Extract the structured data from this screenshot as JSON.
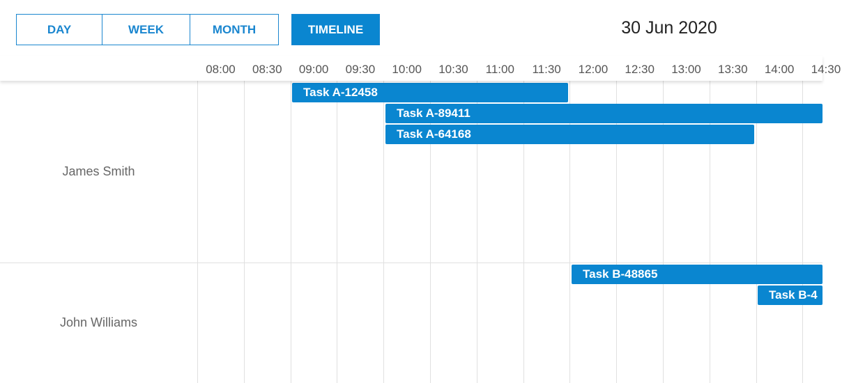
{
  "toolbar": {
    "views": [
      "DAY",
      "WEEK",
      "MONTH",
      "TIMELINE"
    ],
    "active_view": "TIMELINE",
    "date": "30 Jun 2020"
  },
  "timeline": {
    "times": [
      "08:00",
      "08:30",
      "09:00",
      "09:30",
      "10:00",
      "10:30",
      "11:00",
      "11:30",
      "12:00",
      "12:30",
      "13:00",
      "13:30",
      "14:00",
      "14:30"
    ],
    "resources": [
      {
        "name": "James Smith",
        "events": [
          "Task A-12458",
          "Task A-89411",
          "Task A-64168"
        ]
      },
      {
        "name": "John Williams",
        "events": [
          "Task B-48865",
          "Task B-4"
        ]
      }
    ]
  }
}
